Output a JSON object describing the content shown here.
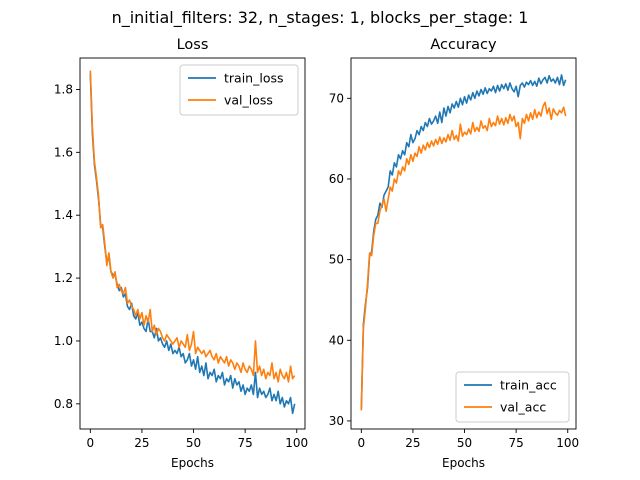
{
  "figure": {
    "suptitle": "n_initial_filters: 32, n_stages: 1, blocks_per_stage: 1"
  },
  "chart_data": [
    {
      "type": "line",
      "title": "Loss",
      "xlabel": "Epochs",
      "ylabel": "",
      "xlim": [
        -5,
        104
      ],
      "ylim": [
        0.72,
        1.9
      ],
      "xticks": [
        0,
        25,
        50,
        75,
        100
      ],
      "yticks": [
        0.8,
        1.0,
        1.2,
        1.4,
        1.6,
        1.8
      ],
      "ytick_decimals": 1,
      "legend_position": "upper right",
      "series": [
        {
          "name": "train_loss",
          "color": "#1f77b4",
          "x": [
            0,
            1,
            2,
            3,
            4,
            5,
            6,
            7,
            8,
            9,
            10,
            11,
            12,
            13,
            14,
            15,
            16,
            17,
            18,
            19,
            20,
            21,
            22,
            23,
            24,
            25,
            26,
            27,
            28,
            29,
            30,
            31,
            32,
            33,
            34,
            35,
            36,
            37,
            38,
            39,
            40,
            41,
            42,
            43,
            44,
            45,
            46,
            47,
            48,
            49,
            50,
            51,
            52,
            53,
            54,
            55,
            56,
            57,
            58,
            59,
            60,
            61,
            62,
            63,
            64,
            65,
            66,
            67,
            68,
            69,
            70,
            71,
            72,
            73,
            74,
            75,
            76,
            77,
            78,
            79,
            80,
            81,
            82,
            83,
            84,
            85,
            86,
            87,
            88,
            89,
            90,
            91,
            92,
            93,
            94,
            95,
            96,
            97,
            98,
            99
          ],
          "y": [
            1.85,
            1.66,
            1.56,
            1.51,
            1.45,
            1.37,
            1.36,
            1.3,
            1.25,
            1.27,
            1.22,
            1.21,
            1.21,
            1.18,
            1.16,
            1.17,
            1.14,
            1.15,
            1.11,
            1.1,
            1.12,
            1.08,
            1.07,
            1.09,
            1.05,
            1.06,
            1.04,
            1.03,
            1.07,
            1.03,
            1.03,
            1.01,
            1.04,
            1.0,
            1.01,
            0.99,
            0.98,
            1.0,
            0.97,
            0.99,
            0.96,
            0.97,
            0.96,
            0.98,
            0.95,
            0.96,
            0.93,
            0.94,
            0.96,
            0.92,
            0.94,
            0.91,
            0.95,
            0.9,
            0.92,
            0.89,
            0.93,
            0.88,
            0.9,
            0.89,
            0.91,
            0.87,
            0.89,
            0.88,
            0.9,
            0.86,
            0.88,
            0.87,
            0.89,
            0.85,
            0.88,
            0.86,
            0.87,
            0.84,
            0.86,
            0.83,
            0.85,
            0.84,
            0.86,
            0.83,
            0.9,
            0.82,
            0.85,
            0.83,
            0.84,
            0.82,
            0.83,
            0.85,
            0.81,
            0.83,
            0.81,
            0.84,
            0.8,
            0.82,
            0.79,
            0.81,
            0.8,
            0.82,
            0.77,
            0.8
          ]
        },
        {
          "name": "val_loss",
          "color": "#ff7f0e",
          "x": [
            0,
            1,
            2,
            3,
            4,
            5,
            6,
            7,
            8,
            9,
            10,
            11,
            12,
            13,
            14,
            15,
            16,
            17,
            18,
            19,
            20,
            21,
            22,
            23,
            24,
            25,
            26,
            27,
            28,
            29,
            30,
            31,
            32,
            33,
            34,
            35,
            36,
            37,
            38,
            39,
            40,
            41,
            42,
            43,
            44,
            45,
            46,
            47,
            48,
            49,
            50,
            51,
            52,
            53,
            54,
            55,
            56,
            57,
            58,
            59,
            60,
            61,
            62,
            63,
            64,
            65,
            66,
            67,
            68,
            69,
            70,
            71,
            72,
            73,
            74,
            75,
            76,
            77,
            78,
            79,
            80,
            81,
            82,
            83,
            84,
            85,
            86,
            87,
            88,
            89,
            90,
            91,
            92,
            93,
            94,
            95,
            96,
            97,
            98,
            99
          ],
          "y": [
            1.86,
            1.68,
            1.57,
            1.52,
            1.46,
            1.36,
            1.37,
            1.31,
            1.24,
            1.28,
            1.22,
            1.2,
            1.22,
            1.17,
            1.18,
            1.16,
            1.15,
            1.17,
            1.12,
            1.13,
            1.11,
            1.1,
            1.08,
            1.1,
            1.07,
            1.09,
            1.05,
            1.08,
            1.06,
            1.1,
            1.03,
            1.05,
            1.02,
            1.04,
            1.03,
            1.01,
            1.0,
            1.02,
            1.01,
            1.0,
            0.99,
            1.0,
            1.01,
            0.98,
            1.0,
            0.99,
            0.98,
            1.02,
            0.97,
            0.99,
            1.03,
            0.96,
            0.98,
            0.97,
            0.96,
            0.97,
            0.95,
            0.96,
            0.97,
            0.95,
            0.94,
            0.96,
            0.93,
            0.95,
            0.94,
            0.93,
            0.95,
            0.92,
            0.94,
            0.93,
            0.91,
            0.93,
            0.92,
            0.9,
            0.93,
            0.91,
            0.9,
            0.92,
            0.91,
            0.89,
            1.0,
            0.9,
            0.92,
            0.89,
            0.91,
            0.88,
            0.9,
            0.89,
            0.93,
            0.88,
            0.9,
            0.87,
            0.91,
            0.89,
            0.88,
            0.9,
            0.87,
            0.92,
            0.88,
            0.89
          ]
        }
      ]
    },
    {
      "type": "line",
      "title": "Accuracy",
      "xlabel": "Epochs",
      "ylabel": "",
      "xlim": [
        -5,
        104
      ],
      "ylim": [
        29,
        75
      ],
      "xticks": [
        0,
        25,
        50,
        75,
        100
      ],
      "yticks": [
        30,
        40,
        50,
        60,
        70
      ],
      "ytick_decimals": 0,
      "legend_position": "lower right",
      "series": [
        {
          "name": "train_acc",
          "color": "#1f77b4",
          "x": [
            0,
            1,
            2,
            3,
            4,
            5,
            6,
            7,
            8,
            9,
            10,
            11,
            12,
            13,
            14,
            15,
            16,
            17,
            18,
            19,
            20,
            21,
            22,
            23,
            24,
            25,
            26,
            27,
            28,
            29,
            30,
            31,
            32,
            33,
            34,
            35,
            36,
            37,
            38,
            39,
            40,
            41,
            42,
            43,
            44,
            45,
            46,
            47,
            48,
            49,
            50,
            51,
            52,
            53,
            54,
            55,
            56,
            57,
            58,
            59,
            60,
            61,
            62,
            63,
            64,
            65,
            66,
            67,
            68,
            69,
            70,
            71,
            72,
            73,
            74,
            75,
            76,
            77,
            78,
            79,
            80,
            81,
            82,
            83,
            84,
            85,
            86,
            87,
            88,
            89,
            90,
            91,
            92,
            93,
            94,
            95,
            96,
            97,
            98,
            99
          ],
          "y": [
            31.5,
            42.0,
            44.5,
            46.5,
            50.5,
            51.0,
            53.5,
            55.0,
            55.5,
            57.0,
            56.5,
            58.0,
            58.5,
            59.0,
            61.0,
            60.5,
            62.0,
            61.5,
            63.0,
            62.5,
            63.5,
            63.0,
            64.5,
            64.0,
            65.5,
            64.5,
            65.0,
            66.0,
            65.5,
            66.5,
            66.0,
            67.0,
            66.5,
            67.5,
            66.8,
            67.2,
            67.8,
            66.9,
            68.3,
            67.0,
            68.8,
            67.8,
            69.0,
            68.2,
            69.3,
            68.8,
            69.6,
            68.9,
            70.0,
            69.2,
            70.2,
            69.4,
            70.4,
            69.8,
            70.7,
            70.0,
            70.9,
            70.3,
            71.1,
            70.5,
            71.3,
            70.6,
            71.2,
            70.9,
            71.5,
            70.7,
            71.6,
            70.9,
            71.7,
            71.2,
            71.8,
            71.0,
            71.9,
            71.2,
            70.8,
            71.5,
            70.2,
            71.6,
            71.9,
            71.4,
            72.0,
            71.7,
            72.2,
            71.6,
            72.1,
            71.5,
            72.5,
            71.8,
            72.3,
            72.6,
            71.9,
            72.8,
            72.1,
            72.4,
            71.9,
            72.6,
            71.7,
            72.9,
            71.6,
            72.3
          ]
        },
        {
          "name": "val_acc",
          "color": "#ff7f0e",
          "x": [
            0,
            1,
            2,
            3,
            4,
            5,
            6,
            7,
            8,
            9,
            10,
            11,
            12,
            13,
            14,
            15,
            16,
            17,
            18,
            19,
            20,
            21,
            22,
            23,
            24,
            25,
            26,
            27,
            28,
            29,
            30,
            31,
            32,
            33,
            34,
            35,
            36,
            37,
            38,
            39,
            40,
            41,
            42,
            43,
            44,
            45,
            46,
            47,
            48,
            49,
            50,
            51,
            52,
            53,
            54,
            55,
            56,
            57,
            58,
            59,
            60,
            61,
            62,
            63,
            64,
            65,
            66,
            67,
            68,
            69,
            70,
            71,
            72,
            73,
            74,
            75,
            76,
            77,
            78,
            79,
            80,
            81,
            82,
            83,
            84,
            85,
            86,
            87,
            88,
            89,
            90,
            91,
            92,
            93,
            94,
            95,
            96,
            97,
            98,
            99
          ],
          "y": [
            31.3,
            41.5,
            44.0,
            47.0,
            50.8,
            50.5,
            53.0,
            54.5,
            54.5,
            56.0,
            56.8,
            57.5,
            56.0,
            57.5,
            59.0,
            58.5,
            60.0,
            59.5,
            61.0,
            60.5,
            61.5,
            61.0,
            62.5,
            61.8,
            63.0,
            62.2,
            63.2,
            62.8,
            64.0,
            63.2,
            64.2,
            63.6,
            64.5,
            63.9,
            64.7,
            64.1,
            64.9,
            64.3,
            65.2,
            64.4,
            65.1,
            64.6,
            65.5,
            64.8,
            66.0,
            64.9,
            65.4,
            64.7,
            66.8,
            65.3,
            65.8,
            65.5,
            66.2,
            65.6,
            67.0,
            65.9,
            66.4,
            65.9,
            67.2,
            66.3,
            66.6,
            66.0,
            67.5,
            66.5,
            67.0,
            66.6,
            67.8,
            66.8,
            67.5,
            66.7,
            67.6,
            66.9,
            68.0,
            67.2,
            67.8,
            66.5,
            67.0,
            65.0,
            67.5,
            66.9,
            68.0,
            67.2,
            68.2,
            67.4,
            68.6,
            67.6,
            68.3,
            67.8,
            69.0,
            69.5,
            68.1,
            68.8,
            67.4,
            68.7,
            68.2,
            67.9,
            68.5,
            68.2,
            68.9,
            67.8
          ]
        }
      ]
    }
  ]
}
